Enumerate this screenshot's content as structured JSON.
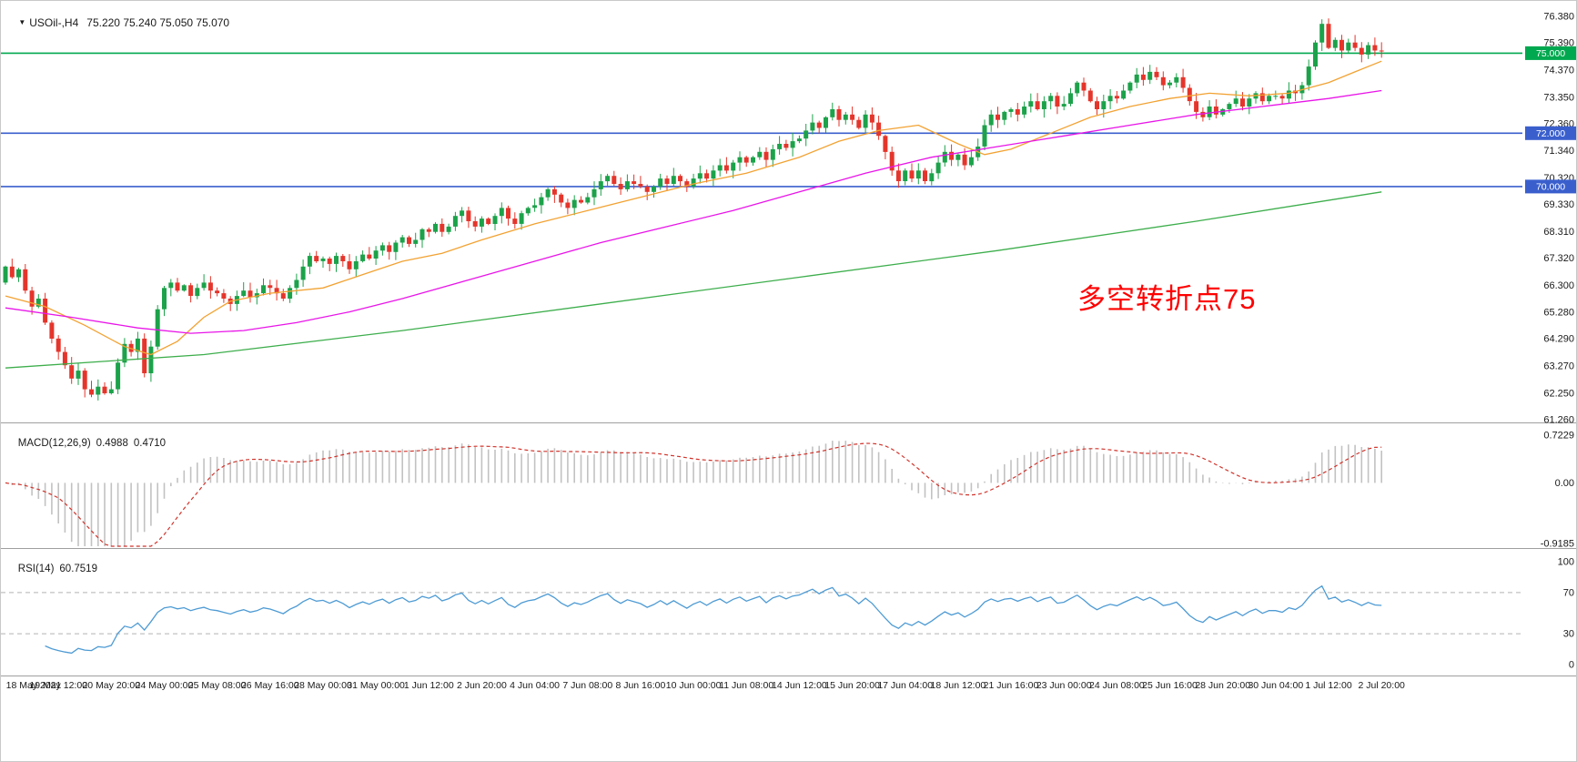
{
  "header": {
    "symbol_label": "USOil-,H4",
    "quote": "75.220 75.240 75.050 75.070"
  },
  "annotation": {
    "text": "多空转折点75",
    "color": "#FF0000"
  },
  "macd_panel": {
    "title": "MACD(12,26,9)",
    "value_main": "0.4988",
    "value_signal": "0.4710"
  },
  "rsi_panel": {
    "title": "RSI(14)",
    "value": "60.7519"
  },
  "colors": {
    "candle_up": "#1CA24A",
    "candle_down": "#E5352B",
    "ma_fast": "#F2A232",
    "ma_mid": "#E815E8",
    "ma_slow": "#3DAE4C",
    "hline_green": "#00A84F",
    "hline_blue": "#3A5FCD",
    "macd_hist": "#C2C2C2",
    "macd_signal": "#D0342C",
    "rsi_line": "#4E9BD4",
    "level_dash": "#B3B3B3",
    "axis_text": "#1A1A1A",
    "separator": "#9F9F9F"
  },
  "chart_data": [
    {
      "type": "candlestick",
      "title": "USOil- H4",
      "ylim": [
        61.26,
        76.38
      ],
      "first_open": 66.4,
      "closes": [
        67.0,
        66.6,
        66.9,
        66.1,
        65.5,
        65.8,
        64.9,
        64.3,
        63.8,
        63.3,
        62.8,
        63.1,
        62.4,
        62.2,
        62.5,
        62.25,
        62.4,
        63.4,
        64.1,
        63.8,
        64.3,
        63.0,
        64.0,
        65.4,
        66.2,
        66.4,
        66.1,
        66.3,
        65.9,
        66.2,
        66.4,
        66.1,
        66.0,
        65.8,
        65.6,
        65.9,
        66.1,
        65.85,
        66.0,
        66.3,
        66.2,
        66.0,
        65.8,
        66.2,
        66.5,
        67.0,
        67.4,
        67.2,
        67.3,
        67.1,
        67.4,
        67.2,
        66.9,
        67.2,
        67.45,
        67.3,
        67.6,
        67.8,
        67.55,
        67.9,
        68.1,
        67.85,
        68.0,
        68.4,
        68.3,
        68.6,
        68.3,
        68.5,
        68.9,
        69.1,
        68.7,
        68.5,
        68.8,
        68.6,
        68.9,
        69.2,
        68.8,
        68.6,
        69.0,
        69.2,
        69.3,
        69.6,
        69.9,
        69.7,
        69.4,
        69.2,
        69.5,
        69.4,
        69.6,
        69.9,
        70.2,
        70.4,
        70.1,
        69.9,
        70.2,
        70.1,
        70.0,
        69.8,
        70.0,
        70.3,
        70.1,
        70.4,
        70.2,
        70.0,
        70.3,
        70.5,
        70.3,
        70.6,
        70.8,
        70.6,
        70.9,
        71.1,
        70.9,
        71.1,
        71.3,
        71.0,
        71.4,
        71.6,
        71.45,
        71.7,
        71.8,
        72.1,
        72.4,
        72.2,
        72.6,
        72.9,
        72.5,
        72.7,
        72.5,
        72.2,
        72.7,
        72.4,
        71.9,
        71.3,
        70.6,
        70.2,
        70.6,
        70.3,
        70.6,
        70.2,
        70.5,
        70.9,
        71.3,
        71.0,
        71.2,
        70.8,
        71.1,
        71.5,
        72.3,
        72.7,
        72.5,
        72.8,
        72.9,
        72.7,
        73.0,
        73.2,
        72.9,
        73.2,
        73.4,
        73.0,
        73.1,
        73.5,
        73.9,
        73.6,
        73.2,
        72.9,
        73.2,
        73.4,
        73.3,
        73.6,
        73.9,
        74.2,
        74.0,
        74.3,
        74.1,
        73.8,
        73.9,
        74.1,
        73.7,
        73.2,
        72.8,
        72.6,
        73.0,
        72.7,
        72.9,
        73.1,
        73.3,
        73.0,
        73.3,
        73.5,
        73.2,
        73.4,
        73.4,
        73.3,
        73.6,
        73.5,
        73.8,
        74.5,
        75.4,
        76.1,
        75.2,
        75.5,
        75.1,
        75.4,
        75.2,
        74.95,
        75.3,
        75.1,
        75.07
      ],
      "y_axis_labels": [
        "76.380",
        "75.390",
        "74.370",
        "73.350",
        "72.360",
        "71.340",
        "70.320",
        "69.330",
        "68.310",
        "67.320",
        "66.300",
        "65.280",
        "64.290",
        "63.270",
        "62.250",
        "61.260"
      ],
      "x_axis_labels": [
        "18 May 2021",
        "19 May 12:00",
        "20 May 20:00",
        "24 May 00:00",
        "25 May 08:00",
        "26 May 16:00",
        "28 May 00:00",
        "31 May 00:00",
        "1 Jun 12:00",
        "2 Jun 20:00",
        "4 Jun 04:00",
        "7 Jun 08:00",
        "8 Jun 16:00",
        "10 Jun 00:00",
        "11 Jun 08:00",
        "14 Jun 12:00",
        "15 Jun 20:00",
        "17 Jun 04:00",
        "18 Jun 12:00",
        "21 Jun 16:00",
        "23 Jun 00:00",
        "24 Jun 08:00",
        "25 Jun 16:00",
        "28 Jun 20:00",
        "30 Jun 04:00",
        "1 Jul 12:00",
        "2 Jul 20:00"
      ],
      "bars_per_x_label": 8,
      "horizontal_lines": [
        {
          "price": 75.0,
          "label": "75.000",
          "color_key": "hline_green"
        },
        {
          "price": 72.0,
          "label": "72.000",
          "color_key": "hline_blue"
        },
        {
          "price": 70.0,
          "label": "70.000",
          "color_key": "hline_blue"
        }
      ],
      "moving_averages": [
        {
          "name": "ma-fast-orange",
          "color_key": "ma_fast",
          "points": [
            [
              0,
              65.9
            ],
            [
              6,
              65.5
            ],
            [
              12,
              64.8
            ],
            [
              18,
              64.0
            ],
            [
              22,
              63.7
            ],
            [
              26,
              64.2
            ],
            [
              30,
              65.1
            ],
            [
              34,
              65.7
            ],
            [
              40,
              66.0
            ],
            [
              48,
              66.2
            ],
            [
              54,
              66.7
            ],
            [
              60,
              67.2
            ],
            [
              66,
              67.5
            ],
            [
              72,
              68.0
            ],
            [
              80,
              68.6
            ],
            [
              88,
              69.1
            ],
            [
              96,
              69.6
            ],
            [
              104,
              70.1
            ],
            [
              112,
              70.5
            ],
            [
              120,
              71.1
            ],
            [
              126,
              71.7
            ],
            [
              132,
              72.1
            ],
            [
              138,
              72.3
            ],
            [
              144,
              71.6
            ],
            [
              148,
              71.2
            ],
            [
              152,
              71.4
            ],
            [
              158,
              72.0
            ],
            [
              164,
              72.6
            ],
            [
              170,
              73.0
            ],
            [
              176,
              73.3
            ],
            [
              182,
              73.5
            ],
            [
              188,
              73.4
            ],
            [
              194,
              73.5
            ],
            [
              200,
              73.9
            ],
            [
              204,
              74.3
            ],
            [
              208,
              74.7
            ]
          ]
        },
        {
          "name": "ma-mid-magenta",
          "color_key": "ma_mid",
          "points": [
            [
              0,
              65.45
            ],
            [
              10,
              65.1
            ],
            [
              20,
              64.7
            ],
            [
              28,
              64.5
            ],
            [
              36,
              64.6
            ],
            [
              44,
              64.9
            ],
            [
              52,
              65.3
            ],
            [
              60,
              65.8
            ],
            [
              70,
              66.5
            ],
            [
              80,
              67.2
            ],
            [
              90,
              67.9
            ],
            [
              100,
              68.5
            ],
            [
              110,
              69.1
            ],
            [
              120,
              69.8
            ],
            [
              130,
              70.5
            ],
            [
              140,
              71.1
            ],
            [
              150,
              71.5
            ],
            [
              160,
              71.9
            ],
            [
              170,
              72.3
            ],
            [
              180,
              72.7
            ],
            [
              190,
              73.0
            ],
            [
              200,
              73.3
            ],
            [
              208,
              73.6
            ]
          ]
        },
        {
          "name": "ma-slow-green",
          "color_key": "ma_slow",
          "points": [
            [
              0,
              63.2
            ],
            [
              30,
              63.7
            ],
            [
              60,
              64.6
            ],
            [
              90,
              65.6
            ],
            [
              120,
              66.6
            ],
            [
              150,
              67.6
            ],
            [
              180,
              68.7
            ],
            [
              208,
              69.8
            ]
          ]
        }
      ]
    },
    {
      "type": "bar",
      "title": "MACD(12,26,9)",
      "fast": 12,
      "slow": 26,
      "signal": 9,
      "current_main": 0.4988,
      "current_signal": 0.471,
      "ylim": [
        -0.9185,
        0.7229
      ],
      "y_axis_labels": [
        "0.7229",
        "0.00",
        "-0.9185"
      ]
    },
    {
      "type": "line",
      "title": "RSI(14)",
      "period": 14,
      "current": 60.7519,
      "ylim": [
        0,
        100
      ],
      "levels": [
        70,
        30
      ],
      "y_axis_labels": [
        "100",
        "70",
        "30",
        "0"
      ]
    }
  ]
}
